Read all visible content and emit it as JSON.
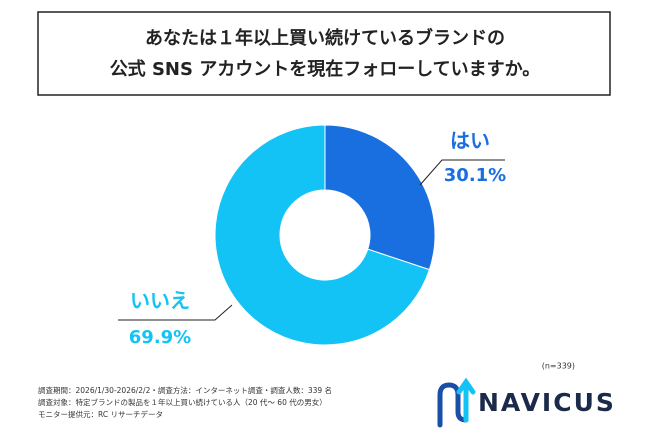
{
  "chart_data": {
    "type": "donut",
    "title": [
      "あなたは１年以上買い続けているブランドの",
      "公式 SNS アカウントを現在フォローしていますか。"
    ],
    "categories": [
      "はい",
      "いいえ"
    ],
    "values": [
      30.1,
      69.9
    ],
    "value_labels": [
      "30.1%",
      "69.9%"
    ],
    "colors": [
      "#1a6fe0",
      "#13c3f5"
    ],
    "sample_note": "(n=339)"
  },
  "footnotes": [
    "調査期間：2026/1/30-2026/2/2・調査方法：インターネット調査・調査人数：339 名",
    "調査対象：特定ブランドの製品を１年以上買い続けている人（20 代～ 60 代の男女）",
    "モニター提供元：RC リサーチデータ"
  ],
  "logo": "NAVICUS"
}
